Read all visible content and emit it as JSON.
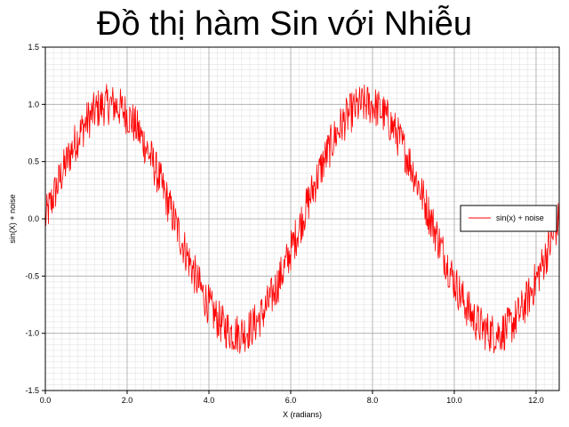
{
  "chart_data": {
    "type": "line",
    "title": "Đồ thị hàm Sin với Nhiễu",
    "xlabel": "X (radians)",
    "ylabel": "sin(X) + noise",
    "xlim": [
      0,
      12.566
    ],
    "ylim": [
      -1.5,
      1.5
    ],
    "x_ticks": [
      0.0,
      2.0,
      4.0,
      6.0,
      8.0,
      10.0,
      12.0
    ],
    "x_tick_labels": [
      "0.0",
      "2.0",
      "4.0",
      "6.0",
      "8.0",
      "10.0",
      "12.0"
    ],
    "y_ticks": [
      1.5,
      1.0,
      0.5,
      0.0,
      -0.5,
      -1.0,
      -1.5
    ],
    "y_tick_labels": [
      "1.5",
      "1.0",
      "0.5",
      "0.0",
      "-0.5",
      "-1.0",
      "-1.5"
    ],
    "grid": true,
    "minor_grid": true,
    "legend_position": "right",
    "series": [
      {
        "name": "sin(x) + noise",
        "color": "#ff0000",
        "function": "sin(x) + noise",
        "noise_amplitude": 0.18,
        "sample_count": 1000
      }
    ]
  }
}
